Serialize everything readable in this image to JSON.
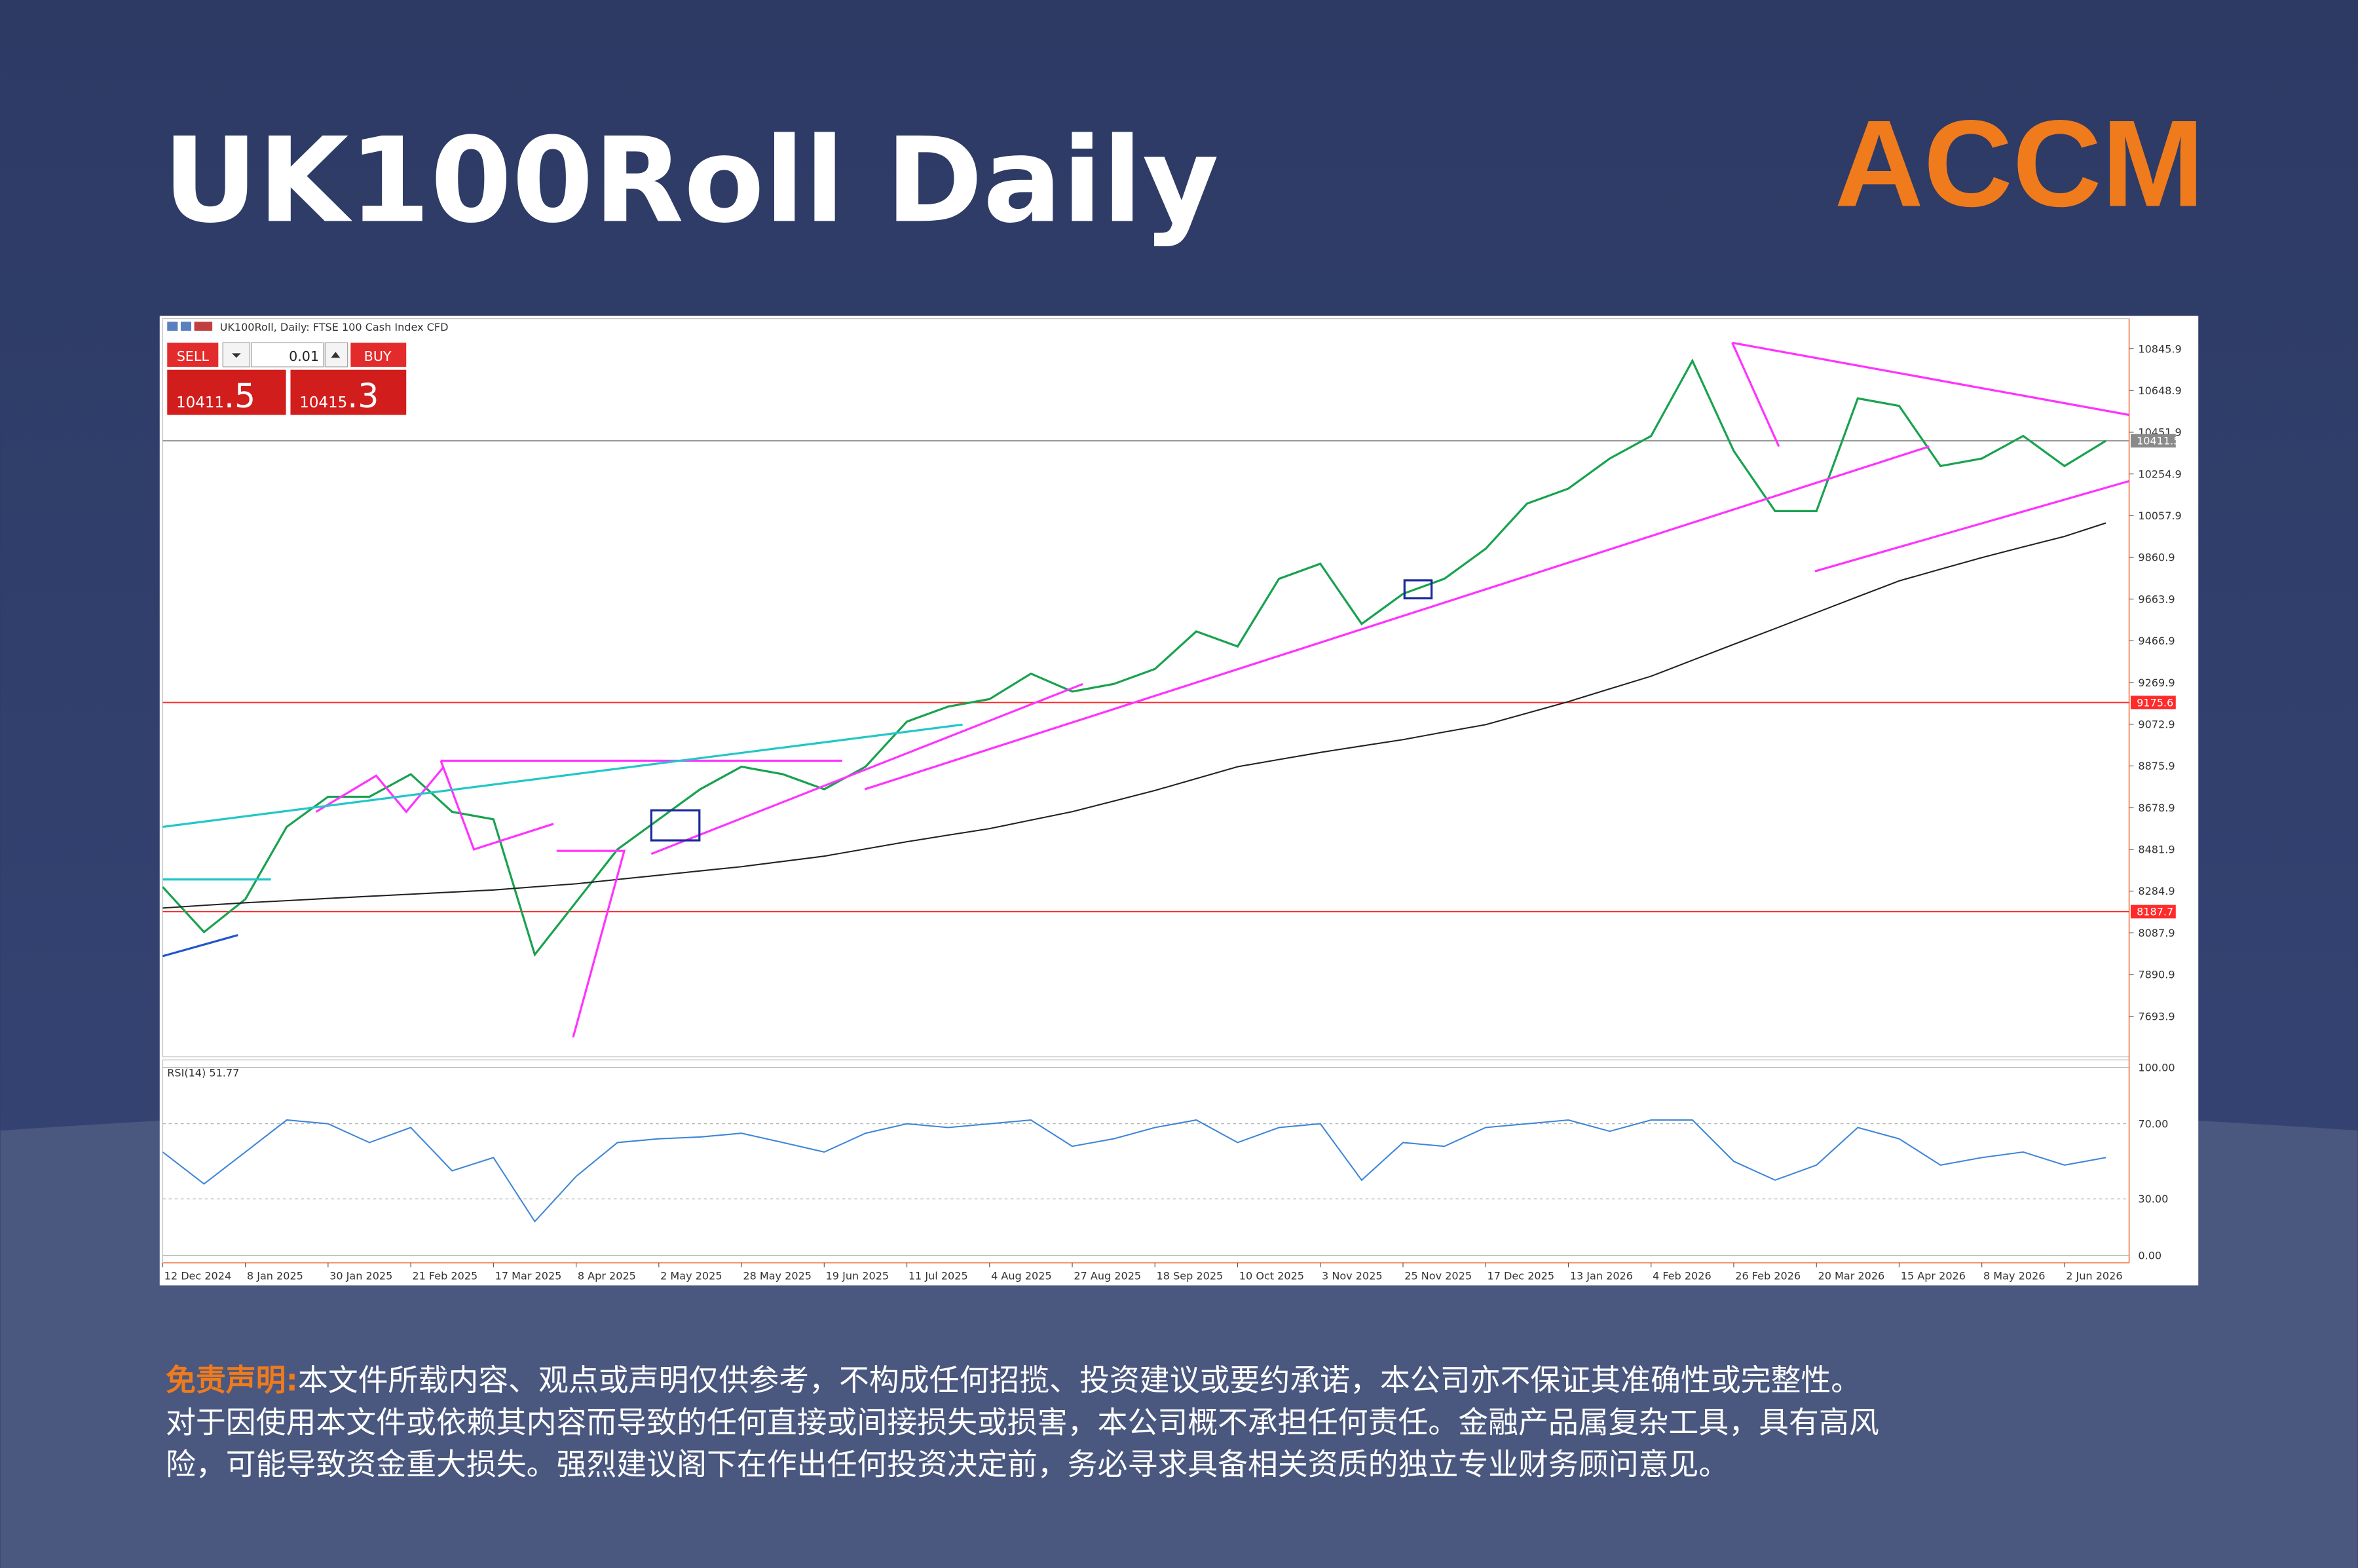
{
  "header": {
    "title": "UK100Roll Daily",
    "logo": "ACCM"
  },
  "trade_panel": {
    "sell": "SELL",
    "buy": "BUY",
    "lot": "0.01",
    "bid": {
      "main": "10411",
      "frac": ".5"
    },
    "ask": {
      "main": "10415",
      "frac": ".3"
    }
  },
  "chart_data": {
    "type": "line",
    "title": "UK100Roll, Daily: FTSE 100 Cash Index CFD",
    "categories": [
      "12 Dec 2024",
      null,
      "8 Jan 2025",
      null,
      "30 Jan 2025",
      null,
      "21 Feb 2025",
      null,
      "17 Mar 2025",
      null,
      "8 Apr 2025",
      null,
      "2 May 2025",
      null,
      "28 May 2025",
      null,
      "19 Jun 2025",
      null,
      "11 Jul 2025",
      null,
      "4 Aug 2025",
      null,
      "27 Aug 2025",
      null,
      "18 Sep 2025",
      null,
      "10 Oct 2025",
      null,
      "3 Nov 2025",
      null,
      "25 Nov 2025",
      null,
      "17 Dec 2025",
      null,
      "13 Jan 2026",
      null,
      "4 Feb 2026",
      null,
      "26 Feb 2026",
      null,
      "20 Mar 2026",
      null,
      "15 Apr 2026",
      null,
      "8 May 2026",
      null,
      "2 Jun 2026",
      null
    ],
    "series": [
      {
        "color": "#19a24f",
        "values": [
          8304,
          8091,
          8247,
          8588,
          8730,
          8730,
          8837,
          8659,
          8624,
          7985,
          8233,
          8482,
          8624,
          8766,
          8872,
          8837,
          8766,
          8872,
          9085,
          9156,
          9192,
          9312,
          9227,
          9263,
          9334,
          9511,
          9440,
          9760,
          9831,
          9547,
          9689,
          9760,
          9902,
          10115,
          10186,
          10328,
          10434,
          10789,
          10363,
          10079,
          10079,
          10612,
          10576,
          10292,
          10328,
          10434,
          10292,
          10411.5
        ]
      },
      {
        "color": "#222222",
        "values": [
          8205,
          8218,
          8230,
          8240,
          8250,
          8260,
          8270,
          8280,
          8290,
          8305,
          8319,
          8340,
          8360,
          8380,
          8400,
          8425,
          8450,
          8484,
          8518,
          8549,
          8580,
          8620,
          8660,
          8710,
          8760,
          8816,
          8872,
          8906,
          8940,
          8970,
          9000,
          9036,
          9071,
          9125,
          9180,
          9240,
          9300,
          9375,
          9450,
          9525,
          9600,
          9675,
          9750,
          9805,
          9860,
          9910,
          9960,
          10023
        ]
      }
    ],
    "ylim": [
      7502,
      10988
    ],
    "yticks": [
      10845.9,
      10648.9,
      10451.9,
      10254.9,
      10057.9,
      9860.9,
      9663.9,
      9466.9,
      9269.9,
      9072.9,
      8875.9,
      8678.9,
      8481.9,
      8284.9,
      8087.9,
      7890.9,
      7693.9
    ],
    "hlines": [
      {
        "value": 9175.6,
        "color": "#ff2a2a"
      },
      {
        "value": 8187.7,
        "color": "#ff2a2a"
      },
      {
        "value": 10411.5,
        "color": "#8a8a8a"
      }
    ],
    "rsi": {
      "label": "RSI(14) 51.77",
      "color": "#3d86d8",
      "ylim": [
        0,
        100
      ],
      "yticks": [
        {
          "value": 100,
          "label": "100.00"
        },
        {
          "value": 70,
          "label": "70.00"
        },
        {
          "value": 30,
          "label": "30.00"
        },
        {
          "value": 0,
          "label": "0.00"
        }
      ],
      "values": [
        55,
        38,
        55,
        72,
        70,
        60,
        68,
        45,
        52,
        18,
        42,
        60,
        62,
        63,
        65,
        60,
        55,
        65,
        70,
        68,
        70,
        72,
        58,
        62,
        68,
        72,
        60,
        68,
        70,
        40,
        60,
        58,
        68,
        70,
        72,
        66,
        72,
        72,
        50,
        40,
        48,
        68,
        62,
        48,
        52,
        55,
        48,
        52
      ]
    }
  },
  "disclaimer": {
    "label": "免责声明:",
    "lines": [
      "本文件所载内容、观点或声明仅供参考，不构成任何招揽、投资建议或要约承诺，本公司亦不保证其准确性或完整性。",
      "对于因使用本文件或依赖其内容而导致的任何直接或间接损失或损害，本公司概不承担任何责任。金融产品属复杂工具，具有高风",
      "险，可能导致资金重大损失。强烈建议阁下在作出任何投资决定前，务必寻求具备相关资质的独立专业财务顾问意见。"
    ]
  }
}
